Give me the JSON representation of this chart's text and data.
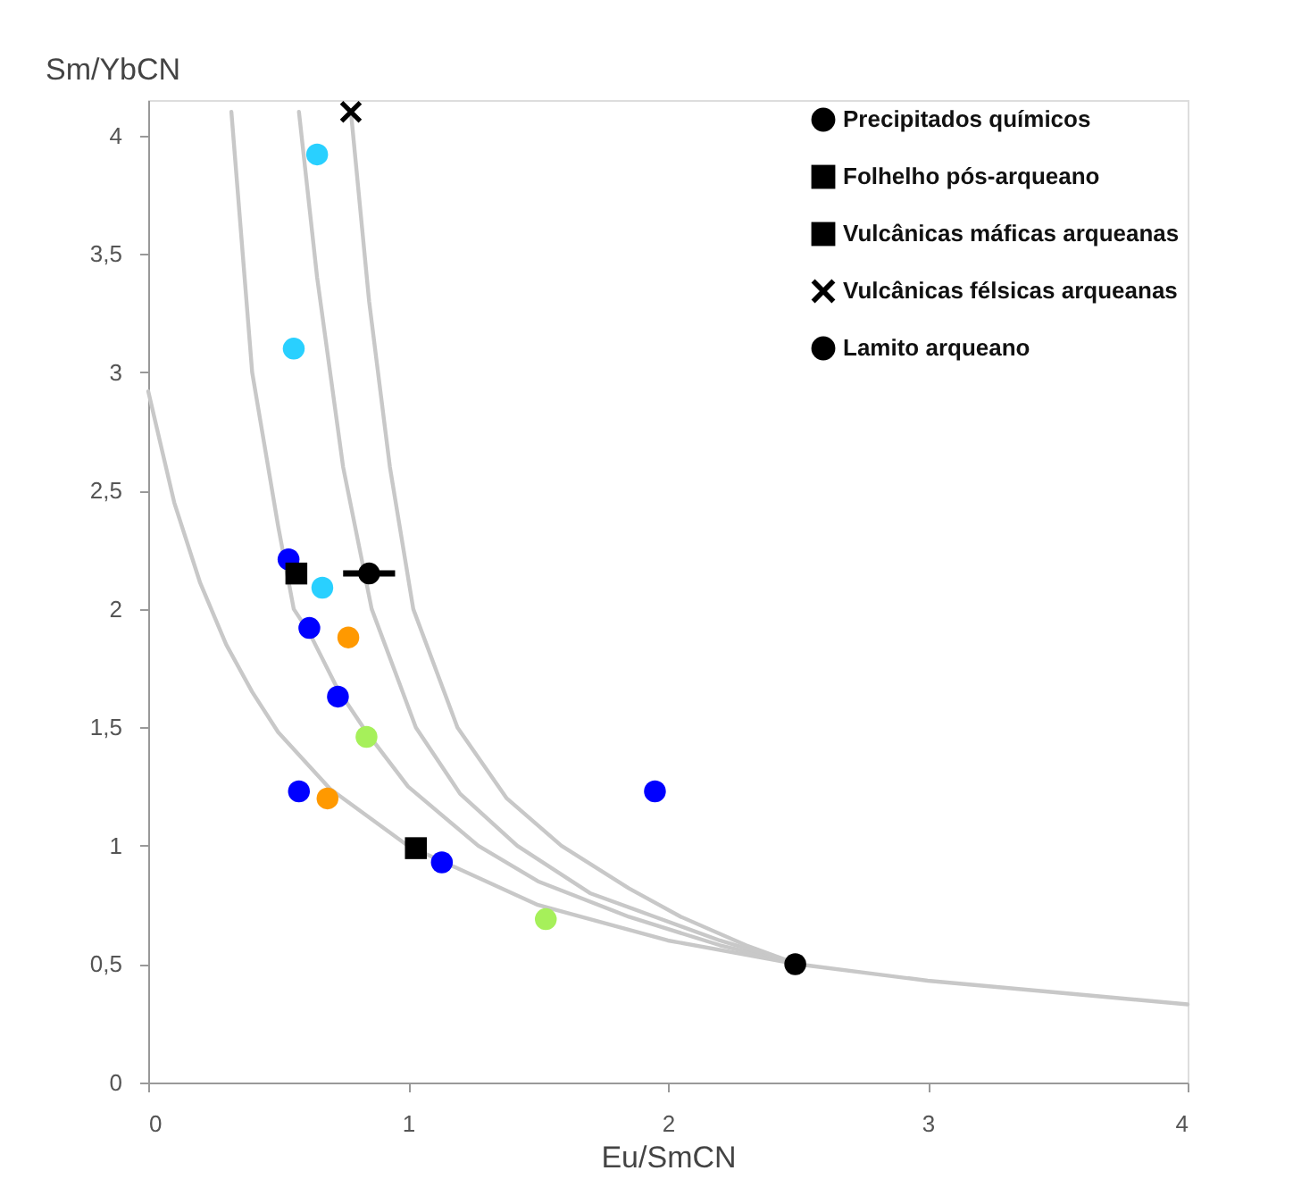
{
  "chart_data": {
    "type": "scatter",
    "xlabel": "Eu/SmCN",
    "ylabel": "Sm/YbCN",
    "xlim": [
      0,
      4
    ],
    "xticks": [
      0,
      1,
      2,
      3,
      4
    ],
    "ylim": [
      0,
      4.15
    ],
    "yticks": [
      0,
      {
        "value": 0.5,
        "label": "0,5"
      },
      1,
      {
        "value": 1.5,
        "label": "1,5"
      },
      2,
      {
        "value": 2.5,
        "label": "2,5"
      },
      3,
      {
        "value": 3.5,
        "label": "3,5"
      },
      4
    ],
    "grid": false,
    "legend": "top right",
    "series": [
      {
        "type": "line",
        "color": "#c8c8c8",
        "marker": "none",
        "line_style": "solid",
        "x": [
          0,
          0.1,
          0.2,
          0.3,
          0.4,
          0.5,
          0.7,
          1,
          1.5,
          2,
          2.5,
          3,
          3.5,
          4
        ],
        "values": [
          2.92,
          2.45,
          2.11,
          1.85,
          1.65,
          1.48,
          1.24,
          1.0,
          0.75,
          0.6,
          0.5,
          0.43,
          0.38,
          0.33
        ]
      },
      {
        "type": "line",
        "color": "#c8c8c8",
        "marker": "none",
        "line_style": "solid",
        "x": [
          0.32,
          0.4,
          0.5,
          0.56,
          0.62,
          0.73,
          0.84,
          1.0,
          1.27,
          1.5,
          1.85,
          2.2,
          2.5
        ],
        "values": [
          4.1,
          3.0,
          2.35,
          2.0,
          1.9,
          1.66,
          1.48,
          1.25,
          1.0,
          0.85,
          0.7,
          0.58,
          0.5
        ]
      },
      {
        "type": "line",
        "color": "#c8c8c8",
        "marker": "none",
        "line_style": "solid",
        "x": [
          0.58,
          0.65,
          0.75,
          0.86,
          1.03,
          1.2,
          1.42,
          1.7,
          1.95,
          2.2,
          2.5
        ],
        "values": [
          4.1,
          3.4,
          2.6,
          2.0,
          1.5,
          1.22,
          1.0,
          0.8,
          0.7,
          0.6,
          0.5
        ]
      },
      {
        "type": "line",
        "color": "#c8c8c8",
        "marker": "none",
        "line_style": "solid",
        "x": [
          0.78,
          0.85,
          0.93,
          1.02,
          1.19,
          1.38,
          1.59,
          1.85,
          2.05,
          2.3,
          2.5
        ],
        "values": [
          4.1,
          3.3,
          2.6,
          2.0,
          1.5,
          1.2,
          1.0,
          0.82,
          0.7,
          0.58,
          0.5
        ]
      },
      {
        "color": "#29d0ff",
        "marker": "circle",
        "x": [
          0.65,
          0.56,
          0.67
        ],
        "values": [
          3.92,
          3.1,
          2.09
        ]
      },
      {
        "color": "#0000ff",
        "marker": "circle",
        "x": [
          0.54,
          0.62,
          0.73,
          0.58,
          1.13,
          1.95
        ],
        "values": [
          2.21,
          1.92,
          1.63,
          1.23,
          0.93,
          1.23
        ]
      },
      {
        "color": "#ff9900",
        "marker": "circle",
        "x": [
          0.77,
          0.69
        ],
        "values": [
          1.88,
          1.2
        ]
      },
      {
        "color": "#a6f05a",
        "marker": "circle",
        "x": [
          0.84,
          1.53
        ],
        "values": [
          1.46,
          0.69
        ]
      },
      {
        "name": "Precipitados químicos",
        "color": "#000000",
        "marker": "circle",
        "x": [
          2.49
        ],
        "values": [
          0.5
        ]
      },
      {
        "name": "Folhelho pós-arqueano",
        "color": "#000000",
        "marker": "square",
        "x": [
          0.57
        ],
        "values": [
          2.15
        ]
      },
      {
        "name": "Vulcânicas máficas arqueanas",
        "color": "#000000",
        "marker": "square",
        "x": [
          1.03
        ],
        "values": [
          0.99
        ]
      },
      {
        "name": "Vulcânicas félsicas arqueanas",
        "color": "#000000",
        "marker": "cross",
        "x": [
          0.78
        ],
        "values": [
          4.1
        ]
      },
      {
        "name": "Lamito arqueano",
        "color": "#000000",
        "marker": "circle",
        "x": [
          0.85
        ],
        "values": [
          2.15
        ],
        "xerrors": [
          [
            0.75,
            0.95
          ]
        ]
      }
    ]
  }
}
